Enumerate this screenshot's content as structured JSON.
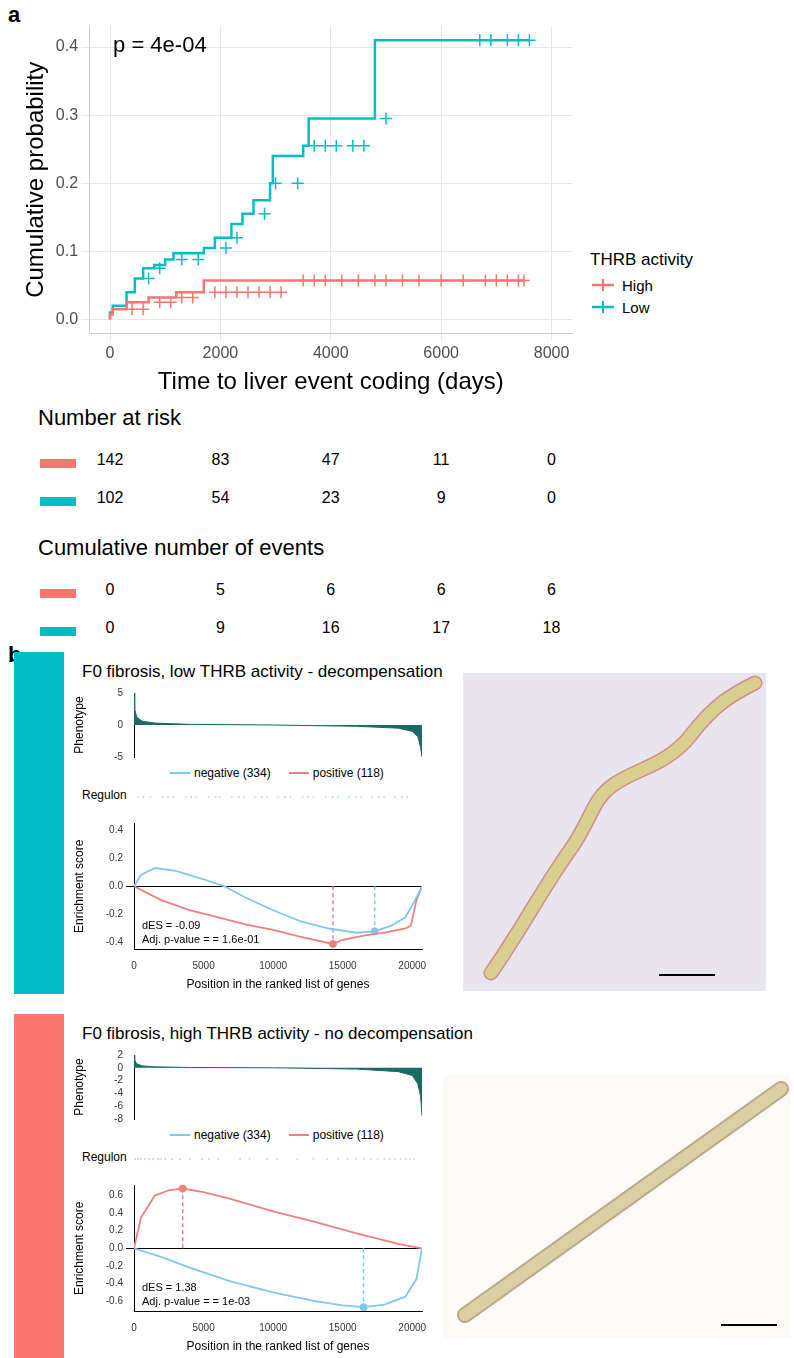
{
  "panel_labels": [
    "a",
    "b"
  ],
  "chart_data": [
    {
      "type": "line",
      "line_style": "step",
      "x_label": "Time to liver event coding (days)",
      "y_label": "Cumulative probability",
      "annotations": [
        "p = 4e-04"
      ],
      "legend": "right",
      "legend_title": "THRB activity",
      "grid": true,
      "xlim": [
        -380,
        8380
      ],
      "xticks": [
        0,
        2000,
        4000,
        6000,
        8000
      ],
      "ylim": [
        -0.02,
        0.43
      ],
      "yticks": [
        {
          "value": 0,
          "label": "0.0"
        },
        0.1,
        0.2,
        0.3,
        0.4
      ],
      "series": [
        {
          "name": "High",
          "color": "#F8766D",
          "marker": "cross",
          "x": [
            0,
            50,
            300,
            700,
            1200,
            1700,
            3300,
            7500
          ],
          "values": [
            0,
            0.007,
            0.015,
            0.025,
            0.032,
            0.04,
            0.057,
            0.057
          ],
          "censored": [
            400,
            600,
            900,
            1100,
            1300,
            1500,
            1900,
            2100,
            2300,
            2500,
            2700,
            2900,
            3100,
            3500,
            3700,
            3900,
            4200,
            4500,
            4800,
            5000,
            5300,
            5600,
            6000,
            6400,
            6800,
            7000,
            7200,
            7400,
            7500
          ]
        },
        {
          "name": "Low",
          "color": "#00BFC4",
          "marker": "cross",
          "x": [
            0,
            50,
            300,
            450,
            600,
            800,
            1000,
            1150,
            1700,
            1900,
            2200,
            2400,
            2600,
            2900,
            2950,
            3500,
            3600,
            4800,
            6600,
            7600
          ],
          "values": [
            0,
            0.01,
            0.02,
            0.04,
            0.06,
            0.075,
            0.08,
            0.088,
            0.097,
            0.105,
            0.12,
            0.14,
            0.155,
            0.175,
            0.2,
            0.24,
            0.255,
            0.295,
            0.41,
            0.41
          ],
          "censored": [
            700,
            900,
            1300,
            1600,
            2100,
            2300,
            2800,
            3000,
            3400,
            3700,
            3900,
            4100,
            4400,
            4600,
            5000,
            6700,
            6900,
            7200,
            7400,
            7600
          ]
        }
      ],
      "tables": [
        {
          "title": "Number at risk",
          "rows": [
            {
              "color": "#F8766D",
              "values": [
                142,
                83,
                47,
                11,
                0
              ]
            },
            {
              "color": "#00BFC4",
              "values": [
                102,
                54,
                23,
                9,
                0
              ]
            }
          ]
        },
        {
          "title": "Cumulative number of events",
          "rows": [
            {
              "color": "#F8766D",
              "values": [
                0,
                5,
                6,
                6,
                6
              ]
            },
            {
              "color": "#00BFC4",
              "values": [
                0,
                9,
                16,
                17,
                18
              ]
            }
          ]
        }
      ]
    },
    {
      "type": "line",
      "title": "F0 fibrosis, low THRB activity - decompensation",
      "color": "#00BFC4",
      "x_label": "Position in the ranked list of genes",
      "y_label": "Enrichment score",
      "xlim": [
        0,
        20700
      ],
      "xticks": [
        0,
        5000,
        10000,
        15000,
        20000
      ],
      "ylim": [
        -0.45,
        0.45
      ],
      "yticks": [
        -0.4,
        -0.2,
        {
          "value": 0,
          "label": "0.0"
        },
        0.2,
        0.4
      ],
      "annotations": [
        "dES = -0.09",
        "Adj. p-value = = 1.6e-01"
      ],
      "series": [
        {
          "name": "negative (334)",
          "color": "#7EC8F0",
          "x": [
            0,
            500,
            1500,
            3000,
            5000,
            6500,
            8000,
            10000,
            12000,
            14000,
            16000,
            17300,
            18500,
            19500,
            20200,
            20700
          ],
          "values": [
            0,
            0.08,
            0.13,
            0.11,
            0.05,
            0,
            -0.08,
            -0.17,
            -0.25,
            -0.3,
            -0.33,
            -0.32,
            -0.28,
            -0.22,
            -0.1,
            0
          ],
          "peak": [
            17300,
            -0.32
          ]
        },
        {
          "name": "positive (118)",
          "color": "#F08080",
          "x": [
            0,
            1000,
            2000,
            4000,
            6000,
            8000,
            10000,
            12000,
            14300,
            15000,
            16500,
            18000,
            19500,
            19900,
            20300,
            20700
          ],
          "values": [
            0,
            -0.05,
            -0.1,
            -0.17,
            -0.22,
            -0.27,
            -0.31,
            -0.36,
            -0.41,
            -0.38,
            -0.35,
            -0.33,
            -0.3,
            -0.28,
            -0.1,
            0
          ],
          "peak": [
            14300,
            -0.41
          ]
        }
      ],
      "phenotype": {
        "y_label": "Phenotype",
        "color": "#1B6B64",
        "ylim": [
          -5,
          5
        ],
        "yticks": [
          -5,
          0,
          5
        ],
        "x": [
          0,
          50,
          200,
          600,
          1500,
          4000,
          10000,
          16000,
          19000,
          20000,
          20400,
          20600,
          20700
        ],
        "values": [
          5,
          2.5,
          1.2,
          0.6,
          0.3,
          0.1,
          0,
          -0.2,
          -0.5,
          -1,
          -1.8,
          -3.5,
          -5
        ]
      },
      "regulon": {
        "label": "Regulon",
        "positions": [
          [
            300,
            1200,
            2100,
            2900,
            3800,
            4600,
            5500,
            6300,
            7200,
            8100,
            8900,
            9800,
            10600,
            11500,
            12400,
            13200,
            14100,
            15000,
            15800,
            16700,
            17500,
            18400,
            19200,
            20100
          ],
          [
            700,
            2500,
            4200,
            6000,
            7700,
            9400,
            11100,
            12800,
            14600,
            16300,
            18000,
            19700
          ]
        ]
      }
    },
    {
      "type": "line",
      "title": "F0 fibrosis, high THRB activity - no decompensation",
      "color": "#F8766D",
      "x_label": "Position in the ranked list of genes",
      "y_label": "Enrichment score",
      "xlim": [
        0,
        20700
      ],
      "xticks": [
        0,
        5000,
        10000,
        15000,
        20000
      ],
      "ylim": [
        -0.72,
        0.72
      ],
      "yticks": [
        -0.6,
        -0.4,
        -0.2,
        {
          "value": 0,
          "label": "0.0"
        },
        0.2,
        0.4,
        0.6
      ],
      "annotations": [
        "dES = 1.38",
        "Adj. p-value = = 1e-03"
      ],
      "series": [
        {
          "name": "negative (334)",
          "color": "#7EC8F0",
          "x": [
            0,
            2000,
            4000,
            7000,
            10000,
            13000,
            15000,
            16500,
            18000,
            19500,
            20300,
            20700
          ],
          "values": [
            0,
            -0.1,
            -0.22,
            -0.38,
            -0.5,
            -0.6,
            -0.65,
            -0.67,
            -0.64,
            -0.55,
            -0.35,
            0
          ],
          "peak": [
            16500,
            -0.67
          ]
        },
        {
          "name": "positive (118)",
          "color": "#F08080",
          "x": [
            0,
            500,
            1500,
            2500,
            3500,
            5000,
            7000,
            10000,
            13000,
            16000,
            19000,
            20700
          ],
          "values": [
            0,
            0.35,
            0.6,
            0.66,
            0.68,
            0.64,
            0.56,
            0.42,
            0.3,
            0.17,
            0.05,
            0
          ],
          "peak": [
            3500,
            0.68
          ]
        }
      ],
      "phenotype": {
        "y_label": "Phenotype",
        "color": "#1B6B64",
        "ylim": [
          -8,
          2
        ],
        "yticks": [
          -8,
          -6,
          -4,
          -2,
          0,
          2
        ],
        "x": [
          0,
          50,
          200,
          600,
          1500,
          4000,
          10000,
          16000,
          19000,
          20000,
          20400,
          20600,
          20700
        ],
        "values": [
          2,
          1.2,
          0.6,
          0.3,
          0.15,
          0.05,
          0,
          -0.2,
          -0.6,
          -1.2,
          -2.5,
          -4.5,
          -7.5
        ]
      },
      "regulon": {
        "label": "Regulon",
        "positions": [
          [
            2000,
            5500,
            8500,
            10500,
            12000,
            13200,
            14200,
            15000,
            15700,
            16300,
            16900,
            17400,
            17900,
            18400,
            18800,
            19200,
            19600,
            20000,
            20300,
            20600
          ],
          [
            100,
            300,
            500,
            800,
            1100,
            1400,
            1800,
            2300,
            2800,
            3400,
            4100,
            5000,
            6200,
            7800,
            9800
          ]
        ]
      }
    }
  ]
}
